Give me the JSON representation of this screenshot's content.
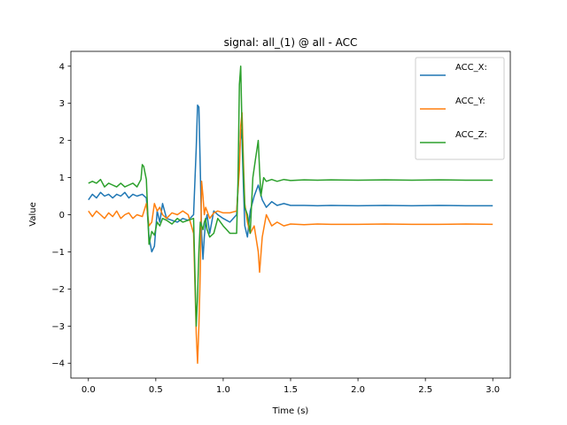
{
  "chart_data": {
    "type": "line",
    "title": "signal: all_(1) @ all - ACC",
    "xlabel": "Time (s)",
    "ylabel": "Value",
    "xlim": [
      -0.13,
      3.13
    ],
    "ylim": [
      -4.4,
      4.4
    ],
    "xticks": [
      0.0,
      0.5,
      1.0,
      1.5,
      2.0,
      2.5,
      3.0
    ],
    "xtick_labels": [
      "0.0",
      "0.5",
      "1.0",
      "1.5",
      "2.0",
      "2.5",
      "3.0"
    ],
    "yticks": [
      -4,
      -3,
      -2,
      -1,
      0,
      1,
      2,
      3,
      4
    ],
    "ytick_labels": [
      "−4",
      "−3",
      "−2",
      "−1",
      "0",
      "1",
      "2",
      "3",
      "4"
    ],
    "grid": false,
    "legend_position": "top-right",
    "series": [
      {
        "name": "ACC_X:",
        "color": "#1f77b4",
        "x": [
          0.0,
          0.03,
          0.06,
          0.09,
          0.12,
          0.15,
          0.18,
          0.21,
          0.24,
          0.27,
          0.3,
          0.33,
          0.36,
          0.4,
          0.43,
          0.45,
          0.47,
          0.49,
          0.51,
          0.53,
          0.55,
          0.58,
          0.62,
          0.66,
          0.7,
          0.74,
          0.78,
          0.8,
          0.81,
          0.82,
          0.83,
          0.84,
          0.85,
          0.86,
          0.87,
          0.88,
          0.9,
          0.93,
          0.96,
          1.0,
          1.05,
          1.1,
          1.12,
          1.13,
          1.14,
          1.15,
          1.16,
          1.18,
          1.2,
          1.23,
          1.26,
          1.29,
          1.32,
          1.36,
          1.4,
          1.45,
          1.5,
          1.6,
          1.7,
          1.8,
          2.0,
          2.2,
          2.4,
          2.6,
          2.8,
          3.0
        ],
        "y": [
          0.4,
          0.55,
          0.45,
          0.6,
          0.5,
          0.55,
          0.45,
          0.55,
          0.5,
          0.6,
          0.45,
          0.55,
          0.5,
          0.55,
          0.45,
          -0.6,
          -1.0,
          -0.85,
          0.1,
          -0.2,
          0.3,
          -0.1,
          -0.15,
          -0.2,
          -0.1,
          -0.15,
          0.0,
          1.8,
          2.95,
          2.9,
          1.2,
          -0.5,
          -1.2,
          -0.6,
          -0.2,
          0.0,
          -0.5,
          0.1,
          0.0,
          -0.1,
          -0.2,
          0.0,
          1.4,
          2.3,
          2.0,
          0.8,
          -0.3,
          -0.6,
          0.1,
          0.5,
          0.8,
          0.4,
          0.2,
          0.35,
          0.25,
          0.3,
          0.25,
          0.25,
          0.24,
          0.25,
          0.24,
          0.25,
          0.24,
          0.25,
          0.24,
          0.24
        ]
      },
      {
        "name": "ACC_Y:",
        "color": "#ff7f0e",
        "x": [
          0.0,
          0.03,
          0.06,
          0.09,
          0.12,
          0.15,
          0.18,
          0.21,
          0.24,
          0.27,
          0.3,
          0.33,
          0.36,
          0.4,
          0.43,
          0.45,
          0.47,
          0.49,
          0.51,
          0.53,
          0.55,
          0.58,
          0.62,
          0.66,
          0.7,
          0.74,
          0.78,
          0.8,
          0.81,
          0.82,
          0.83,
          0.84,
          0.85,
          0.86,
          0.87,
          0.88,
          0.9,
          0.93,
          0.96,
          1.0,
          1.05,
          1.1,
          1.12,
          1.13,
          1.14,
          1.15,
          1.16,
          1.18,
          1.2,
          1.23,
          1.26,
          1.27,
          1.29,
          1.32,
          1.36,
          1.4,
          1.45,
          1.5,
          1.6,
          1.7,
          1.8,
          2.0,
          2.2,
          2.4,
          2.6,
          2.8,
          3.0
        ],
        "y": [
          0.1,
          -0.05,
          0.1,
          0.0,
          -0.1,
          0.05,
          -0.05,
          0.1,
          -0.1,
          0.0,
          0.05,
          -0.1,
          0.0,
          -0.05,
          0.3,
          -0.3,
          -0.2,
          0.3,
          0.1,
          0.2,
          0.0,
          -0.1,
          0.05,
          0.0,
          0.1,
          0.0,
          -0.5,
          -3.2,
          -4.0,
          -3.0,
          -1.5,
          0.9,
          0.5,
          0.0,
          0.2,
          0.1,
          -0.1,
          0.05,
          0.1,
          0.05,
          0.05,
          0.1,
          1.2,
          2.4,
          2.75,
          1.5,
          0.3,
          -0.2,
          -0.5,
          -0.3,
          -1.0,
          -1.55,
          -0.6,
          0.0,
          -0.3,
          -0.2,
          -0.3,
          -0.25,
          -0.27,
          -0.25,
          -0.26,
          -0.26,
          -0.25,
          -0.26,
          -0.26,
          -0.25,
          -0.26
        ]
      },
      {
        "name": "ACC_Z:",
        "color": "#2ca02c",
        "x": [
          0.0,
          0.03,
          0.06,
          0.09,
          0.12,
          0.15,
          0.18,
          0.21,
          0.24,
          0.27,
          0.3,
          0.33,
          0.36,
          0.39,
          0.4,
          0.41,
          0.43,
          0.45,
          0.47,
          0.49,
          0.51,
          0.53,
          0.55,
          0.58,
          0.62,
          0.66,
          0.7,
          0.74,
          0.78,
          0.8,
          0.81,
          0.82,
          0.83,
          0.84,
          0.85,
          0.86,
          0.87,
          0.88,
          0.9,
          0.93,
          0.96,
          1.0,
          1.05,
          1.1,
          1.11,
          1.12,
          1.13,
          1.14,
          1.15,
          1.16,
          1.18,
          1.2,
          1.22,
          1.24,
          1.26,
          1.27,
          1.28,
          1.3,
          1.32,
          1.36,
          1.4,
          1.45,
          1.5,
          1.6,
          1.7,
          1.8,
          2.0,
          2.2,
          2.4,
          2.6,
          2.8,
          3.0
        ],
        "y": [
          0.85,
          0.9,
          0.85,
          0.95,
          0.75,
          0.85,
          0.8,
          0.75,
          0.85,
          0.75,
          0.8,
          0.85,
          0.75,
          0.95,
          1.35,
          1.3,
          0.95,
          -0.8,
          -0.45,
          -0.55,
          -0.2,
          -0.3,
          -0.1,
          -0.15,
          -0.25,
          -0.1,
          -0.2,
          -0.15,
          -0.1,
          -3.0,
          -2.2,
          -1.0,
          -0.2,
          -0.3,
          -0.4,
          -0.2,
          -0.1,
          -0.4,
          -0.6,
          -0.5,
          -0.1,
          -0.3,
          -0.5,
          -0.5,
          1.0,
          3.5,
          4.0,
          2.3,
          1.2,
          0.2,
          0.0,
          -0.5,
          1.0,
          1.5,
          2.0,
          1.2,
          0.5,
          1.0,
          0.9,
          0.95,
          0.9,
          0.95,
          0.92,
          0.94,
          0.93,
          0.94,
          0.93,
          0.94,
          0.93,
          0.94,
          0.93,
          0.93
        ]
      }
    ]
  }
}
